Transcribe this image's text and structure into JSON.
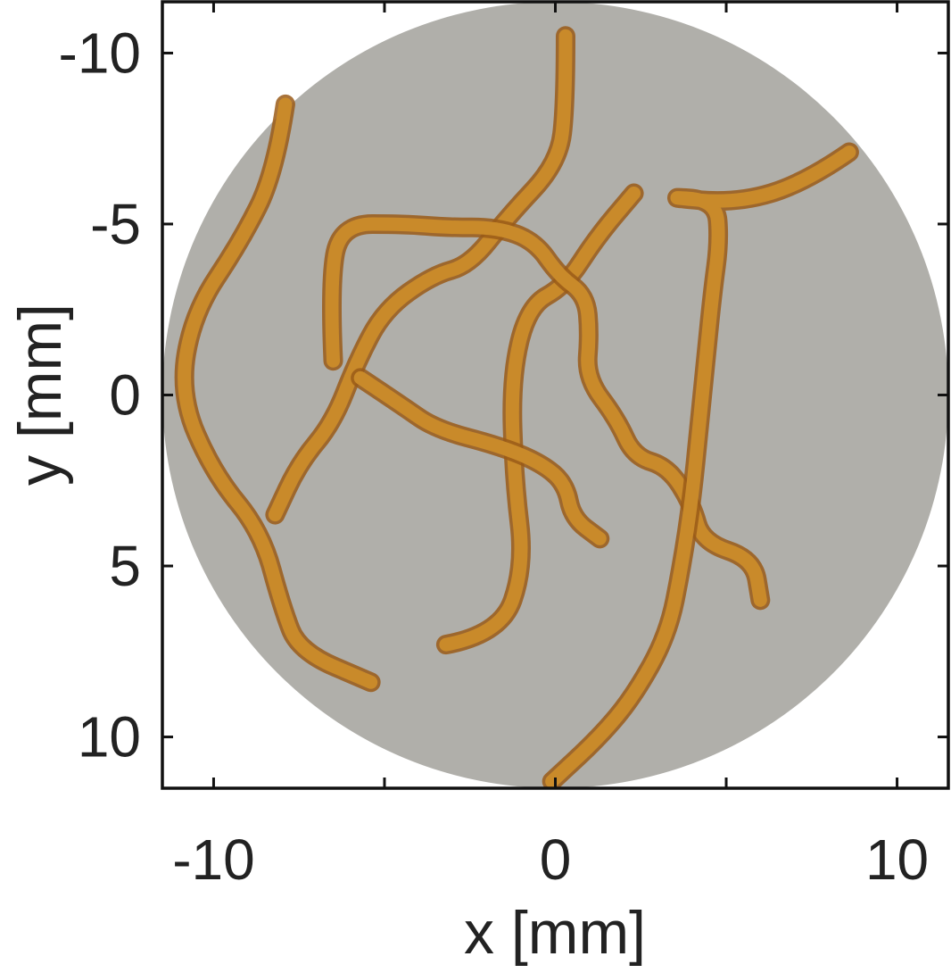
{
  "axes": {
    "xlabel": "x [mm]",
    "ylabel": "y [mm]",
    "xlim": [
      -11.5,
      11.5
    ],
    "ylim": [
      -11.5,
      11.5
    ],
    "y_inverted": true,
    "x_ticks": [
      {
        "value": -10,
        "label": "-10"
      },
      {
        "value": -5,
        "label": ""
      },
      {
        "value": 0,
        "label": "0"
      },
      {
        "value": 5,
        "label": ""
      },
      {
        "value": 10,
        "label": "10"
      }
    ],
    "y_ticks": [
      {
        "value": -10,
        "label": "-10"
      },
      {
        "value": -5,
        "label": "-5"
      },
      {
        "value": 0,
        "label": "0"
      },
      {
        "value": 5,
        "label": "5"
      },
      {
        "value": 10,
        "label": "10"
      }
    ]
  },
  "image": {
    "subject": "nematode worms in circular arena",
    "arena_color": "#b0afaa",
    "worm_color": "#c98a2a",
    "worm_dark_color": "#9a5a18",
    "arena_radius_mm": 11.5
  },
  "worms": [
    {
      "points": [
        [
          -7.9,
          -8.5
        ],
        [
          -8.2,
          -6.5
        ],
        [
          -9.2,
          -4.5
        ],
        [
          -10.6,
          -2.4
        ],
        [
          -11.0,
          0
        ],
        [
          -10.0,
          2.3
        ],
        [
          -8.6,
          4.0
        ],
        [
          -8.0,
          6.2
        ],
        [
          -7.5,
          7.5
        ],
        [
          -5.4,
          8.4
        ]
      ]
    },
    {
      "points": [
        [
          -3.2,
          7.3
        ],
        [
          -1.6,
          7.0
        ],
        [
          -0.9,
          5.0
        ],
        [
          -1.2,
          2.5
        ],
        [
          -1.3,
          -0.5
        ],
        [
          -0.8,
          -2.6
        ],
        [
          0.3,
          -3.2
        ],
        [
          1.2,
          -4.6
        ],
        [
          2.3,
          -5.9
        ]
      ]
    },
    {
      "points": [
        [
          0.3,
          -10.5
        ],
        [
          0.3,
          -8.5
        ],
        [
          0.1,
          -6.8
        ],
        [
          -1.4,
          -5.2
        ],
        [
          -2.5,
          -3.8
        ],
        [
          -3.6,
          -3.5
        ],
        [
          -5.0,
          -2.5
        ],
        [
          -5.8,
          -1.0
        ],
        [
          -6.5,
          0.8
        ],
        [
          -7.5,
          2.0
        ],
        [
          -8.2,
          3.5
        ]
      ]
    },
    {
      "points": [
        [
          -6.5,
          -1.0
        ],
        [
          -6.6,
          -3.2
        ],
        [
          -6.3,
          -5.0
        ],
        [
          -4.4,
          -5.0
        ],
        [
          -3.2,
          -4.9
        ],
        [
          -1.7,
          -4.9
        ],
        [
          -0.6,
          -4.5
        ],
        [
          0.1,
          -3.5
        ],
        [
          0.9,
          -2.9
        ],
        [
          1.0,
          -1.8
        ],
        [
          0.9,
          -0.5
        ],
        [
          1.8,
          0.7
        ],
        [
          2.3,
          1.8
        ],
        [
          3.3,
          2.1
        ],
        [
          4.0,
          3.2
        ],
        [
          4.3,
          4.3
        ],
        [
          5.8,
          4.8
        ],
        [
          6.0,
          6.0
        ]
      ]
    },
    {
      "points": [
        [
          -5.7,
          -0.5
        ],
        [
          -4.5,
          0.3
        ],
        [
          -3.5,
          1.0
        ],
        [
          -1.6,
          1.5
        ],
        [
          -0.4,
          2.0
        ],
        [
          0.3,
          2.6
        ],
        [
          0.5,
          3.6
        ],
        [
          1.3,
          4.2
        ]
      ]
    },
    {
      "points": [
        [
          8.6,
          -7.1
        ],
        [
          7.3,
          -6.2
        ],
        [
          5.3,
          -5.6
        ],
        [
          3.1,
          -5.8
        ],
        [
          4.7,
          -5.7
        ],
        [
          4.8,
          -4.5
        ],
        [
          4.6,
          -3.0
        ],
        [
          4.4,
          -1.0
        ],
        [
          4.2,
          1.0
        ],
        [
          4.0,
          3.0
        ],
        [
          3.7,
          5.0
        ],
        [
          3.3,
          7.0
        ],
        [
          2.3,
          8.8
        ],
        [
          1.3,
          10.0
        ],
        [
          -0.1,
          11.3
        ]
      ]
    }
  ]
}
